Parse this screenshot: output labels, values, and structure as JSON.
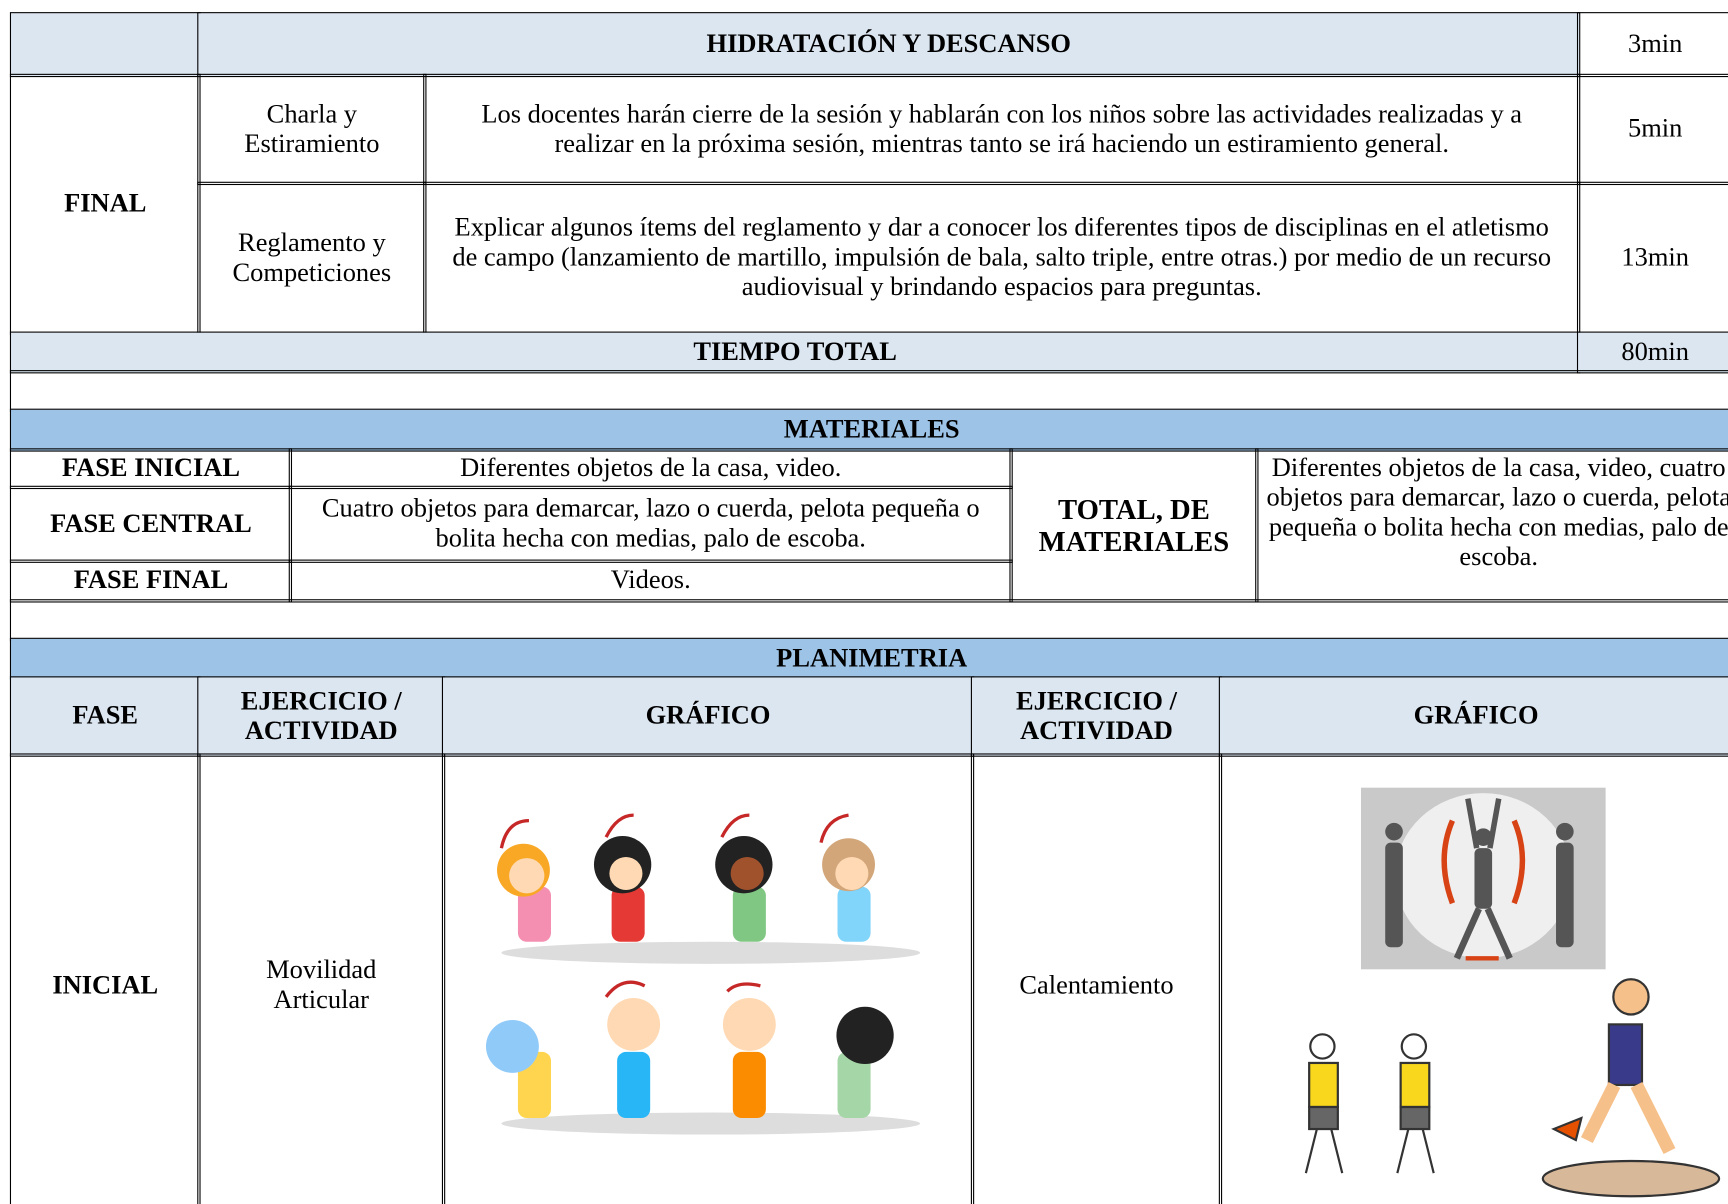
{
  "session_table": {
    "break_row": {
      "label": "HIDRATACIÓN Y DESCANSO",
      "time": "3min"
    },
    "phase": "FINAL",
    "activities": [
      {
        "name": "Charla y Estiramiento",
        "description": "Los docentes harán cierre de la sesión y hablarán con los niños sobre las actividades realizadas y a realizar en la próxima sesión, mientras tanto se irá haciendo un estiramiento general.",
        "time": "5min"
      },
      {
        "name": "Reglamento y Competiciones",
        "description": "Explicar algunos ítems del reglamento y dar a conocer los diferentes tipos de disciplinas en el atletismo de campo (lanzamiento de martillo, impulsión de bala, salto triple, entre otras.) por medio de un recurso audiovisual y brindando espacios para preguntas.",
        "time": "13min"
      }
    ],
    "total": {
      "label": "TIEMPO TOTAL",
      "time": "80min"
    }
  },
  "materials": {
    "title": "MATERIALES",
    "rows": [
      {
        "phase": "FASE INICIAL",
        "items": "Diferentes objetos de la casa, video."
      },
      {
        "phase": "FASE CENTRAL",
        "items": "Cuatro objetos para demarcar, lazo o cuerda, pelota pequeña o bolita hecha con medias, palo de escoba."
      },
      {
        "phase": "FASE FINAL",
        "items": "Videos."
      }
    ],
    "total_label": "TOTAL, DE MATERIALES",
    "total_items": "Diferentes objetos de la casa, video, cuatro objetos para demarcar, lazo o cuerda, pelota pequeña o bolita hecha con medias, palo de escoba."
  },
  "planimetry": {
    "title": "PLANIMETRIA",
    "headers": [
      "FASE",
      "EJERCICIO / ACTIVIDAD",
      "GRÁFICO",
      "EJERCICIO / ACTIVIDAD",
      "GRÁFICO"
    ],
    "rows": [
      {
        "phase": "INICIAL",
        "exercise_1": "Movilidad Articular",
        "exercise_2": "Calentamiento"
      }
    ]
  }
}
